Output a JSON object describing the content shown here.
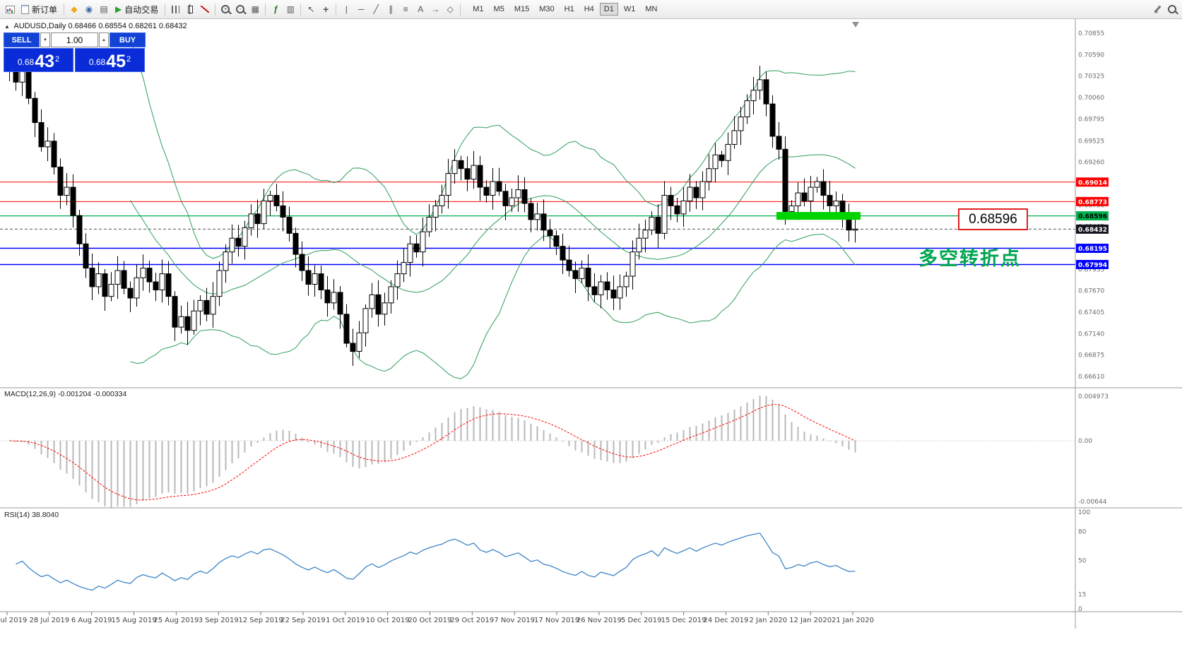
{
  "toolbar": {
    "new_order": "新订单",
    "auto_trading": "自动交易",
    "timeframes": [
      "M1",
      "M5",
      "M15",
      "M30",
      "H1",
      "H4",
      "D1",
      "W1",
      "MN"
    ],
    "active_timeframe": "D1"
  },
  "icons": {
    "collapse": "▲",
    "play": "▶",
    "diamond": "◆",
    "person": "◉",
    "news": "▤",
    "list": "▥",
    "grid": "▦",
    "indicator": "ƒ",
    "cursor": "↖",
    "crosshair": "+",
    "vline": "|",
    "hline": "─",
    "trendline": "╱",
    "channel": "∥",
    "fibo": "≡",
    "text_tool": "A",
    "arrow_tool": "→",
    "shape_tool": "◇",
    "spin_up": "▲",
    "spin_down": "▼"
  },
  "symbol_bar": {
    "symbol": "AUDUSD,Daily",
    "ohlc": "0.68466 0.68554 0.68261 0.68432"
  },
  "trade_panel": {
    "sell_label": "SELL",
    "buy_label": "BUY",
    "volume": "1.00",
    "sell_price_prefix": "0.68",
    "sell_price_big": "43",
    "sell_price_sup": "2",
    "buy_price_prefix": "0.68",
    "buy_price_big": "45",
    "buy_price_sup": "2"
  },
  "annotations": {
    "callout_price": "0.68596",
    "cn_note": "多空转折点",
    "note_color": "#00a651"
  },
  "chart_data": [
    {
      "type": "candlestick",
      "symbol": "AUDUSD",
      "timeframe": "Daily",
      "ohlc_header": {
        "open": "0.68466",
        "high": "0.68554",
        "low": "0.68261",
        "close": "0.68432"
      },
      "first_open": 0.7058,
      "closes": [
        0.7042,
        0.7025,
        0.7038,
        0.7005,
        0.6975,
        0.6945,
        0.6952,
        0.692,
        0.6885,
        0.6895,
        0.686,
        0.6825,
        0.6795,
        0.6772,
        0.6788,
        0.676,
        0.6775,
        0.6792,
        0.677,
        0.6758,
        0.6783,
        0.6795,
        0.6778,
        0.6768,
        0.6788,
        0.676,
        0.6722,
        0.6735,
        0.6718,
        0.6742,
        0.6755,
        0.6738,
        0.676,
        0.6792,
        0.6815,
        0.6832,
        0.6822,
        0.6845,
        0.6862,
        0.685,
        0.6878,
        0.6885,
        0.6872,
        0.6858,
        0.6838,
        0.6812,
        0.6792,
        0.6775,
        0.6788,
        0.6768,
        0.6752,
        0.6765,
        0.6738,
        0.6702,
        0.6692,
        0.6715,
        0.6745,
        0.6762,
        0.6738,
        0.6752,
        0.6772,
        0.6788,
        0.6802,
        0.6825,
        0.6815,
        0.684,
        0.6858,
        0.6872,
        0.6885,
        0.6912,
        0.6928,
        0.6918,
        0.6905,
        0.6922,
        0.6895,
        0.6885,
        0.6902,
        0.689,
        0.6872,
        0.6882,
        0.6892,
        0.6875,
        0.6855,
        0.6862,
        0.6842,
        0.6835,
        0.6822,
        0.6805,
        0.6792,
        0.6782,
        0.6795,
        0.6772,
        0.6762,
        0.6778,
        0.6768,
        0.6758,
        0.6772,
        0.6785,
        0.6815,
        0.6832,
        0.6842,
        0.6858,
        0.6838,
        0.6885,
        0.6872,
        0.6862,
        0.6878,
        0.6895,
        0.6882,
        0.6902,
        0.6918,
        0.6935,
        0.6928,
        0.6948,
        0.6965,
        0.6982,
        0.7002,
        0.7015,
        0.7028,
        0.6998,
        0.6958,
        0.6942,
        0.6865,
        0.6872,
        0.6888,
        0.6878,
        0.6895,
        0.6902,
        0.6885,
        0.6872,
        0.6878,
        0.6858,
        0.6842,
        0.68432
      ],
      "overlays": {
        "bollinger_period": 20,
        "bollinger_dev": 2,
        "color": "#2e9e5a"
      },
      "hlines": [
        {
          "price": 0.69014,
          "color": "#ff0000",
          "width": 1,
          "label": "0.69014"
        },
        {
          "price": 0.68773,
          "color": "#ff0000",
          "width": 1,
          "label": "0.68773"
        },
        {
          "price": 0.68596,
          "color": "#00b050",
          "width": 1.2,
          "label": "0.68596"
        },
        {
          "price": 0.68195,
          "color": "#0000ff",
          "width": 1.5,
          "label": "0.68195"
        },
        {
          "price": 0.67994,
          "color": "#0000ff",
          "width": 1.5,
          "label": "0.67994"
        }
      ],
      "current_price": {
        "value": 0.68432,
        "label": "0.68432"
      },
      "highlight_segment": {
        "price": 0.68596,
        "from_bar": 121,
        "to_bar": 134,
        "color": "#00d400",
        "thickness": 11
      },
      "y_axis": {
        "min": 0.6661,
        "max": 0.70855,
        "ticks": [
          "0.70855",
          "0.70590",
          "0.70325",
          "0.70060",
          "0.69795",
          "0.69525",
          "0.69260",
          "0.68995",
          "0.68730",
          "0.68465",
          "0.68200",
          "0.67935",
          "0.67670",
          "0.67405",
          "0.67140",
          "0.66875",
          "0.66610"
        ]
      },
      "x_axis": {
        "ticks": [
          "18 Jul 2019",
          "28 Jul 2019",
          "6 Aug 2019",
          "15 Aug 2019",
          "25 Aug 2019",
          "3 Sep 2019",
          "12 Sep 2019",
          "22 Sep 2019",
          "1 Oct 2019",
          "10 Oct 2019",
          "20 Oct 2019",
          "29 Oct 2019",
          "7 Nov 2019",
          "17 Nov 2019",
          "26 Nov 2019",
          "5 Dec 2019",
          "15 Dec 2019",
          "24 Dec 2019",
          "2 Jan 2020",
          "12 Jan 2020",
          "21 Jan 2020"
        ]
      }
    },
    {
      "type": "macd",
      "header": "MACD(12,26,9) -0.001204 -0.000334",
      "params": [
        12,
        26,
        9
      ],
      "values": {
        "macd": -0.001204,
        "signal": -0.000334
      },
      "scale": {
        "max": 0.004973,
        "min": -0.00644
      },
      "y_axis": {
        "ticks": [
          "0.004973",
          "0.00",
          "-0.00644"
        ]
      },
      "colors": {
        "histogram": "#b8b8b8",
        "signal": "#ff0000"
      }
    },
    {
      "type": "rsi",
      "header": "RSI(14) 38.8040",
      "period": 14,
      "value": 38.804,
      "y_axis": {
        "levels": [
          100,
          80,
          50,
          15,
          0
        ]
      },
      "color": "#3d85c8"
    }
  ]
}
